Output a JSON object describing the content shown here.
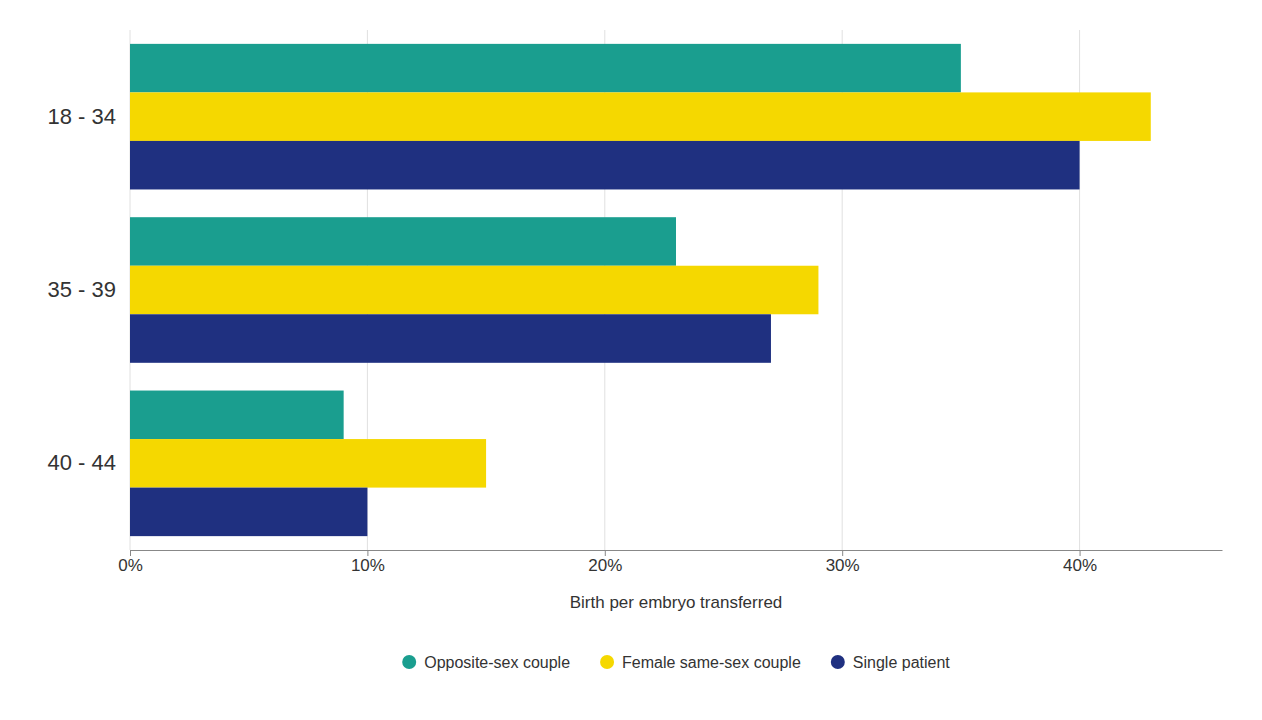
{
  "chart_data": {
    "type": "bar",
    "orientation": "horizontal",
    "categories": [
      "18 - 34",
      "35 - 39",
      "40 - 44"
    ],
    "series": [
      {
        "name": "Opposite-sex couple",
        "color": "#1a9e8f",
        "values": [
          35,
          23,
          9
        ]
      },
      {
        "name": "Female same-sex couple",
        "color": "#f5d800",
        "values": [
          43,
          29,
          15
        ]
      },
      {
        "name": "Single patient",
        "color": "#1f3080",
        "values": [
          40,
          27,
          10
        ]
      }
    ],
    "xlabel": "Birth per embryo transferred",
    "xlim": [
      0,
      46
    ],
    "xticks": [
      {
        "value": 0,
        "label": "0%"
      },
      {
        "value": 10,
        "label": "10%"
      },
      {
        "value": 20,
        "label": "20%"
      },
      {
        "value": 30,
        "label": "30%"
      },
      {
        "value": 40,
        "label": "40%"
      }
    ],
    "grid": true,
    "legend": "bottom"
  }
}
